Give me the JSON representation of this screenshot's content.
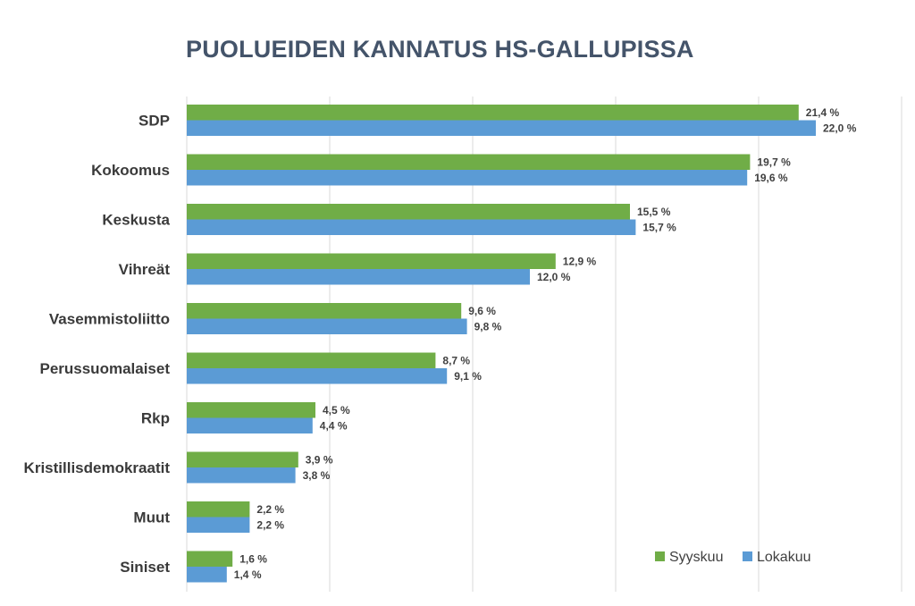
{
  "chart_data": {
    "type": "bar",
    "orientation": "horizontal",
    "title": "PUOLUEIDEN KANNATUS HS-GALLUPISSA",
    "categories": [
      "SDP",
      "Kokoomus",
      "Keskusta",
      "Vihreät",
      "Vasemmistoliitto",
      "Perussuomalaiset",
      "Rkp",
      "Kristillisdemokraatit",
      "Muut",
      "Siniset"
    ],
    "series": [
      {
        "name": "Syyskuu",
        "color": "#70ad47",
        "values": [
          21.4,
          19.7,
          15.5,
          12.9,
          9.6,
          8.7,
          4.5,
          3.9,
          2.2,
          1.6
        ],
        "labels": [
          "21,4 %",
          "19,7 %",
          "15,5 %",
          "12,9 %",
          "9,6 %",
          "8,7 %",
          "4,5 %",
          "3,9 %",
          "2,2 %",
          "1,6 %"
        ]
      },
      {
        "name": "Lokakuu",
        "color": "#5b9bd5",
        "values": [
          22.0,
          19.6,
          15.7,
          12.0,
          9.8,
          9.1,
          4.4,
          3.8,
          2.2,
          1.4
        ],
        "labels": [
          "22,0 %",
          "19,6 %",
          "15,7 %",
          "12,0 %",
          "9,8 %",
          "9,1 %",
          "4,4 %",
          "3,8 %",
          "2,2 %",
          "1,4 %"
        ]
      }
    ],
    "xlim": [
      0,
      25
    ],
    "grid": true,
    "legend_position": "bottom-right",
    "value_axis_labels_shown": false
  }
}
